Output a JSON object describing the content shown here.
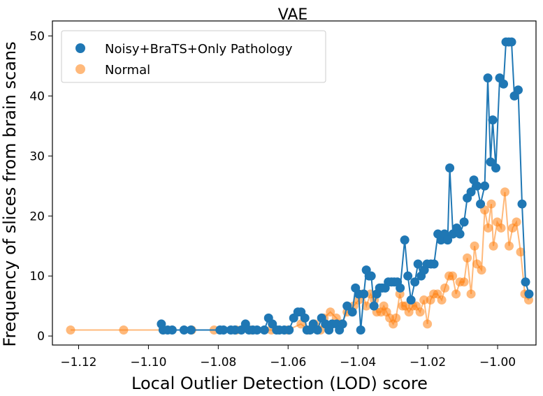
{
  "chart_data": {
    "type": "line",
    "title": "VAE",
    "xlabel": "Local Outlier Detection (LOD) score",
    "ylabel": "Frequency of slices from brain scans",
    "xlim": [
      -1.1275,
      -0.989
    ],
    "ylim": [
      -1.5,
      52.5
    ],
    "xticks": [
      -1.12,
      -1.1,
      -1.08,
      -1.06,
      -1.04,
      -1.02,
      -1.0
    ],
    "xtick_labels": [
      "−1.12",
      "−1.10",
      "−1.08",
      "−1.06",
      "−1.04",
      "−1.02",
      "−1.00"
    ],
    "yticks": [
      0,
      10,
      20,
      30,
      40,
      50
    ],
    "ytick_labels": [
      "0",
      "10",
      "20",
      "30",
      "40",
      "50"
    ],
    "grid": false,
    "legend_position": "top-left",
    "series": [
      {
        "name": "Noisy+BraTS+Only Pathology",
        "color": "#1f77b4",
        "alpha": 1.0,
        "points": [
          [
            -1.0963,
            2
          ],
          [
            -1.0958,
            1
          ],
          [
            -1.0945,
            1
          ],
          [
            -1.0932,
            1
          ],
          [
            -1.0898,
            1
          ],
          [
            -1.0878,
            1
          ],
          [
            -1.0795,
            1
          ],
          [
            -1.0785,
            1
          ],
          [
            -1.0764,
            1
          ],
          [
            -1.0752,
            1
          ],
          [
            -1.0734,
            1
          ],
          [
            -1.0722,
            2
          ],
          [
            -1.0712,
            1
          ],
          [
            -1.0701,
            1
          ],
          [
            -1.0689,
            1
          ],
          [
            -1.0668,
            1
          ],
          [
            -1.0656,
            3
          ],
          [
            -1.0645,
            2
          ],
          [
            -1.0633,
            1
          ],
          [
            -1.0625,
            1
          ],
          [
            -1.0611,
            1
          ],
          [
            -1.0597,
            1
          ],
          [
            -1.0584,
            3
          ],
          [
            -1.0572,
            4
          ],
          [
            -1.0563,
            4
          ],
          [
            -1.0552,
            3
          ],
          [
            -1.0546,
            1
          ],
          [
            -1.0537,
            1
          ],
          [
            -1.0528,
            2
          ],
          [
            -1.0516,
            1
          ],
          [
            -1.0504,
            3
          ],
          [
            -1.0493,
            2
          ],
          [
            -1.0483,
            1
          ],
          [
            -1.0474,
            2
          ],
          [
            -1.0461,
            2
          ],
          [
            -1.0453,
            1
          ],
          [
            -1.0444,
            2
          ],
          [
            -1.0431,
            5
          ],
          [
            -1.0416,
            4
          ],
          [
            -1.0407,
            8
          ],
          [
            -1.0398,
            7
          ],
          [
            -1.0392,
            1
          ],
          [
            -1.0383,
            7
          ],
          [
            -1.0376,
            11
          ],
          [
            -1.0368,
            10
          ],
          [
            -1.0362,
            10
          ],
          [
            -1.0354,
            5
          ],
          [
            -1.0346,
            7
          ],
          [
            -1.0338,
            8
          ],
          [
            -1.0331,
            8
          ],
          [
            -1.0322,
            8
          ],
          [
            -1.0313,
            9
          ],
          [
            -1.0304,
            9
          ],
          [
            -1.0296,
            9
          ],
          [
            -1.0287,
            9
          ],
          [
            -1.0279,
            8
          ],
          [
            -1.0266,
            16
          ],
          [
            -1.0257,
            10
          ],
          [
            -1.0248,
            6
          ],
          [
            -1.0237,
            9
          ],
          [
            -1.0228,
            12
          ],
          [
            -1.0219,
            10
          ],
          [
            -1.021,
            11
          ],
          [
            -1.0202,
            12
          ],
          [
            -1.0191,
            12
          ],
          [
            -1.0182,
            12
          ],
          [
            -1.0171,
            17
          ],
          [
            -1.0162,
            16
          ],
          [
            -1.0152,
            17
          ],
          [
            -1.0143,
            16
          ],
          [
            -1.0137,
            28
          ],
          [
            -1.0128,
            17
          ],
          [
            -1.0117,
            18
          ],
          [
            -1.0108,
            17
          ],
          [
            -1.0096,
            19
          ],
          [
            -1.0087,
            23
          ],
          [
            -1.0076,
            24
          ],
          [
            -1.0068,
            26
          ],
          [
            -1.0059,
            25
          ],
          [
            -1.0049,
            22
          ],
          [
            -1.0037,
            25
          ],
          [
            -1.0028,
            43
          ],
          [
            -1.002,
            29
          ],
          [
            -1.0014,
            36
          ],
          [
            -1.0005,
            28
          ],
          [
            -0.9994,
            43
          ],
          [
            -0.9983,
            42
          ],
          [
            -0.9976,
            49
          ],
          [
            -0.9968,
            49
          ],
          [
            -0.996,
            49
          ],
          [
            -0.9952,
            40
          ],
          [
            -0.9941,
            41
          ],
          [
            -0.993,
            22
          ],
          [
            -0.992,
            9
          ],
          [
            -0.991,
            7
          ]
        ]
      },
      {
        "name": "Normal",
        "color": "#ff7f0e",
        "alpha": 0.55,
        "points": [
          [
            -1.1223,
            1
          ],
          [
            -1.1071,
            1
          ],
          [
            -1.0958,
            1
          ],
          [
            -1.0876,
            1
          ],
          [
            -1.0812,
            1
          ],
          [
            -1.0748,
            1
          ],
          [
            -1.0704,
            1
          ],
          [
            -1.0648,
            1
          ],
          [
            -1.0601,
            1
          ],
          [
            -1.0563,
            2
          ],
          [
            -1.0541,
            1
          ],
          [
            -1.0524,
            2
          ],
          [
            -1.0507,
            1
          ],
          [
            -1.0497,
            3
          ],
          [
            -1.0479,
            4
          ],
          [
            -1.0462,
            3
          ],
          [
            -1.0447,
            2
          ],
          [
            -1.0431,
            4
          ],
          [
            -1.0412,
            5
          ],
          [
            -1.0398,
            6
          ],
          [
            -1.0386,
            7
          ],
          [
            -1.0376,
            5
          ],
          [
            -1.0364,
            7
          ],
          [
            -1.0353,
            6
          ],
          [
            -1.0346,
            4
          ],
          [
            -1.0334,
            4
          ],
          [
            -1.0326,
            5
          ],
          [
            -1.0318,
            4
          ],
          [
            -1.0309,
            3
          ],
          [
            -1.0299,
            2
          ],
          [
            -1.0291,
            3
          ],
          [
            -1.028,
            7
          ],
          [
            -1.0272,
            5
          ],
          [
            -1.0264,
            5
          ],
          [
            -1.0254,
            4
          ],
          [
            -1.0243,
            5
          ],
          [
            -1.0233,
            5
          ],
          [
            -1.0222,
            4
          ],
          [
            -1.0211,
            6
          ],
          [
            -1.0201,
            2
          ],
          [
            -1.0192,
            6
          ],
          [
            -1.0183,
            7
          ],
          [
            -1.0172,
            7
          ],
          [
            -1.016,
            6
          ],
          [
            -1.0151,
            8
          ],
          [
            -1.0139,
            10
          ],
          [
            -1.0129,
            10
          ],
          [
            -1.0119,
            7
          ],
          [
            -1.0108,
            9
          ],
          [
            -1.0096,
            9
          ],
          [
            -1.0087,
            13
          ],
          [
            -1.0076,
            7
          ],
          [
            -1.0066,
            15
          ],
          [
            -1.0059,
            12
          ],
          [
            -1.0046,
            11
          ],
          [
            -1.0037,
            21
          ],
          [
            -1.0027,
            18
          ],
          [
            -1.0018,
            22
          ],
          [
            -1.0012,
            15
          ],
          [
            -1.0001,
            19
          ],
          [
            -0.999,
            18
          ],
          [
            -0.9979,
            24
          ],
          [
            -0.9967,
            15
          ],
          [
            -0.9957,
            18
          ],
          [
            -0.9946,
            19
          ],
          [
            -0.9934,
            14
          ],
          [
            -0.9922,
            7
          ],
          [
            -0.9911,
            6
          ]
        ]
      }
    ]
  }
}
